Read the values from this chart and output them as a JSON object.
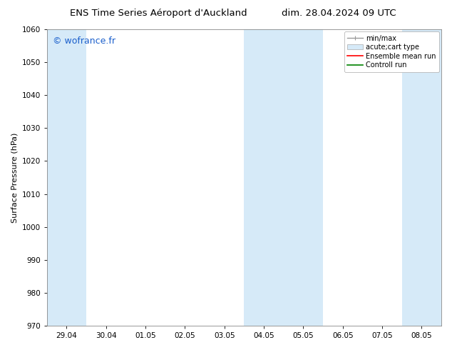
{
  "title_left": "ENS Time Series Aéroport d'Auckland",
  "title_right": "dim. 28.04.2024 09 UTC",
  "ylabel": "Surface Pressure (hPa)",
  "ylim": [
    970,
    1060
  ],
  "yticks": [
    970,
    980,
    990,
    1000,
    1010,
    1020,
    1030,
    1040,
    1050,
    1060
  ],
  "xtick_labels": [
    "29.04",
    "30.04",
    "01.05",
    "02.05",
    "03.05",
    "04.05",
    "05.05",
    "06.05",
    "07.05",
    "08.05"
  ],
  "xtick_positions": [
    0,
    1,
    2,
    3,
    4,
    5,
    6,
    7,
    8,
    9
  ],
  "xlim": [
    -0.5,
    9.5
  ],
  "background_color": "#ffffff",
  "plot_bg_color": "#ffffff",
  "shaded_bands": [
    {
      "x_start": -0.5,
      "x_end": 0.5,
      "color": "#d6eaf8"
    },
    {
      "x_start": 4.5,
      "x_end": 6.5,
      "color": "#d6eaf8"
    },
    {
      "x_start": 8.5,
      "x_end": 9.5,
      "color": "#d6eaf8"
    }
  ],
  "watermark_text": "© wofrance.fr",
  "watermark_color": "#1a5fcc",
  "border_color": "#888888",
  "tick_color": "#000000",
  "fontsize_title": 9.5,
  "fontsize_axis": 8,
  "fontsize_tick": 7.5,
  "fontsize_watermark": 9,
  "fontsize_legend": 7
}
